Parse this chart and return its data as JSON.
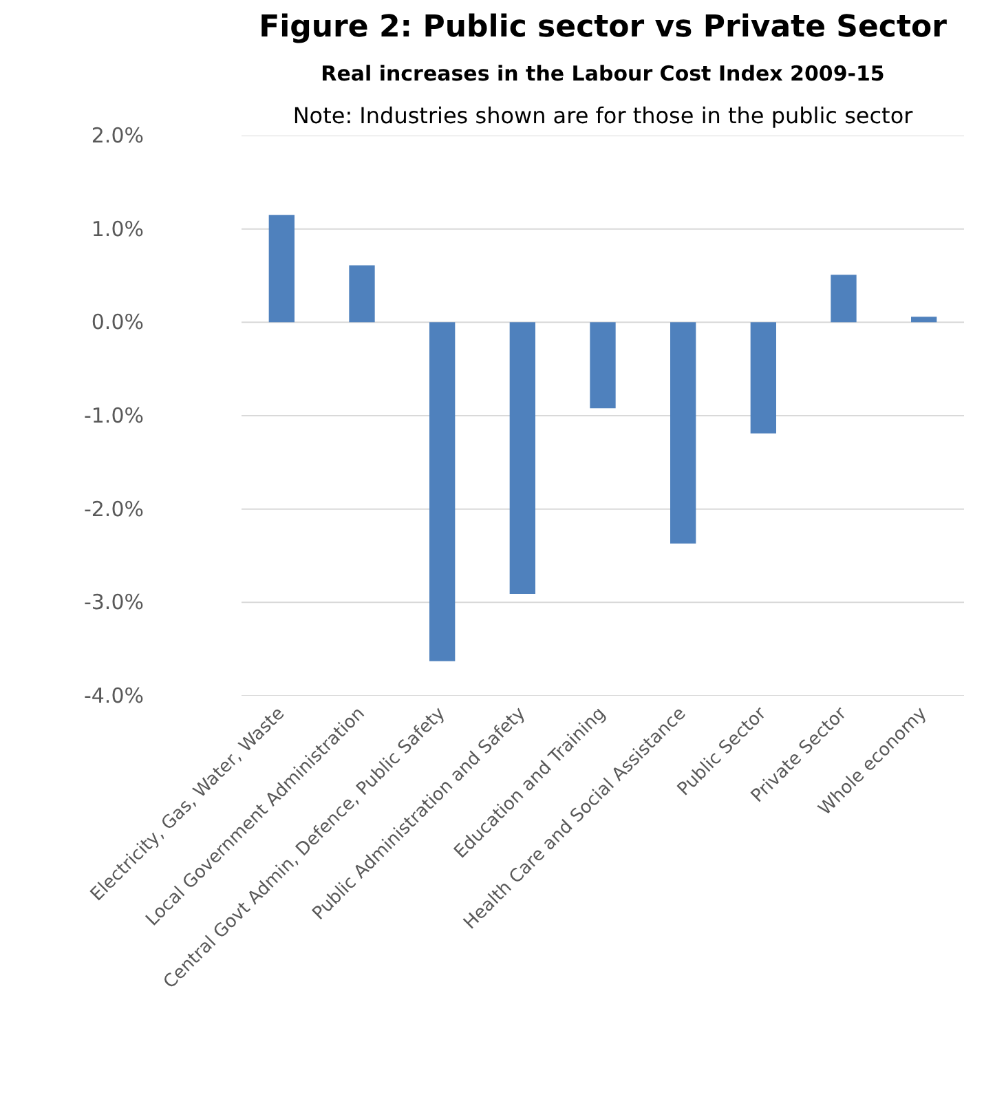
{
  "chart_data": {
    "type": "bar",
    "title": "Figure 2: Public sector vs Private Sector",
    "subtitle": "Real increases in the Labour Cost Index 2009-15",
    "annotations": [
      "Note: Industries shown are for those in the public sector"
    ],
    "categories": [
      "Electricity, Gas, Water, Waste",
      "Local Government Administration",
      "Central Govt Admin, Defence, Public Safety",
      "Public Administration and Safety",
      "Education and Training",
      "Health Care and Social Assistance",
      "Public Sector",
      "Private Sector",
      "Whole economy"
    ],
    "values": [
      1.15,
      0.61,
      -3.63,
      -2.91,
      -0.92,
      -2.37,
      -1.19,
      0.51,
      0.06
    ],
    "color": "#4f81bd",
    "ylim": [
      -4,
      2
    ],
    "yticks": [
      {
        "value": -4,
        "label": "-4.0%"
      },
      {
        "value": -3,
        "label": "-3.0%"
      },
      {
        "value": -2,
        "label": "-2.0%"
      },
      {
        "value": -1,
        "label": "-1.0%"
      },
      {
        "value": 0,
        "label": "0.0%"
      },
      {
        "value": 1,
        "label": "1.0%"
      },
      {
        "value": 2,
        "label": "2.0%"
      }
    ],
    "grid": "y"
  }
}
